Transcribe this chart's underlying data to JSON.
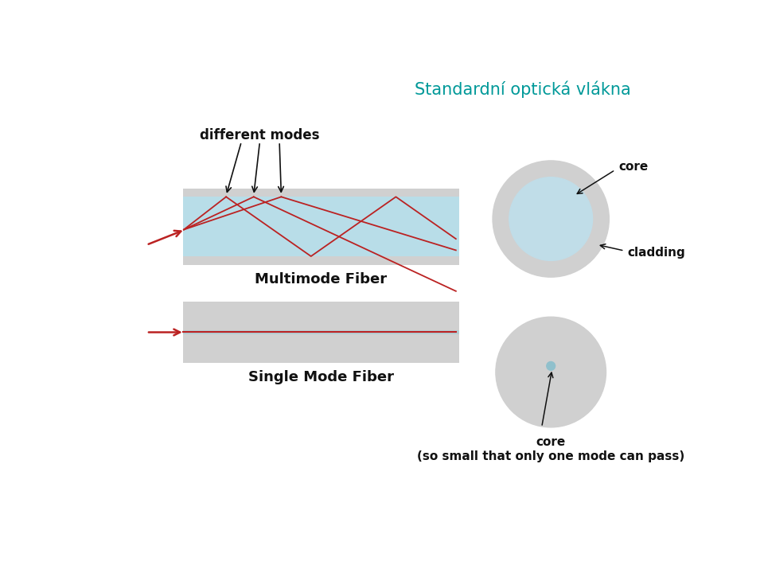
{
  "title": "Standardní optická vlákna",
  "title_color": "#009999",
  "title_fontsize": 15,
  "bg_color": "#ffffff",
  "multimode_label": "Multimode Fiber",
  "singlemode_label": "Single Mode Fiber",
  "diff_modes_label": "different modes",
  "core_label_top": "core",
  "cladding_label": "cladding",
  "core_label_bottom": "core\n(so small that only one mode can pass)",
  "fiber_outer_color": "#d0d0d0",
  "fiber_core_color": "#b8dde8",
  "red_color": "#bb2222",
  "arrow_color": "#111111",
  "clad_circle_color": "#d0d0d0",
  "core_circle_color": "#c0dde8",
  "sm_core_color": "#90c0cc"
}
